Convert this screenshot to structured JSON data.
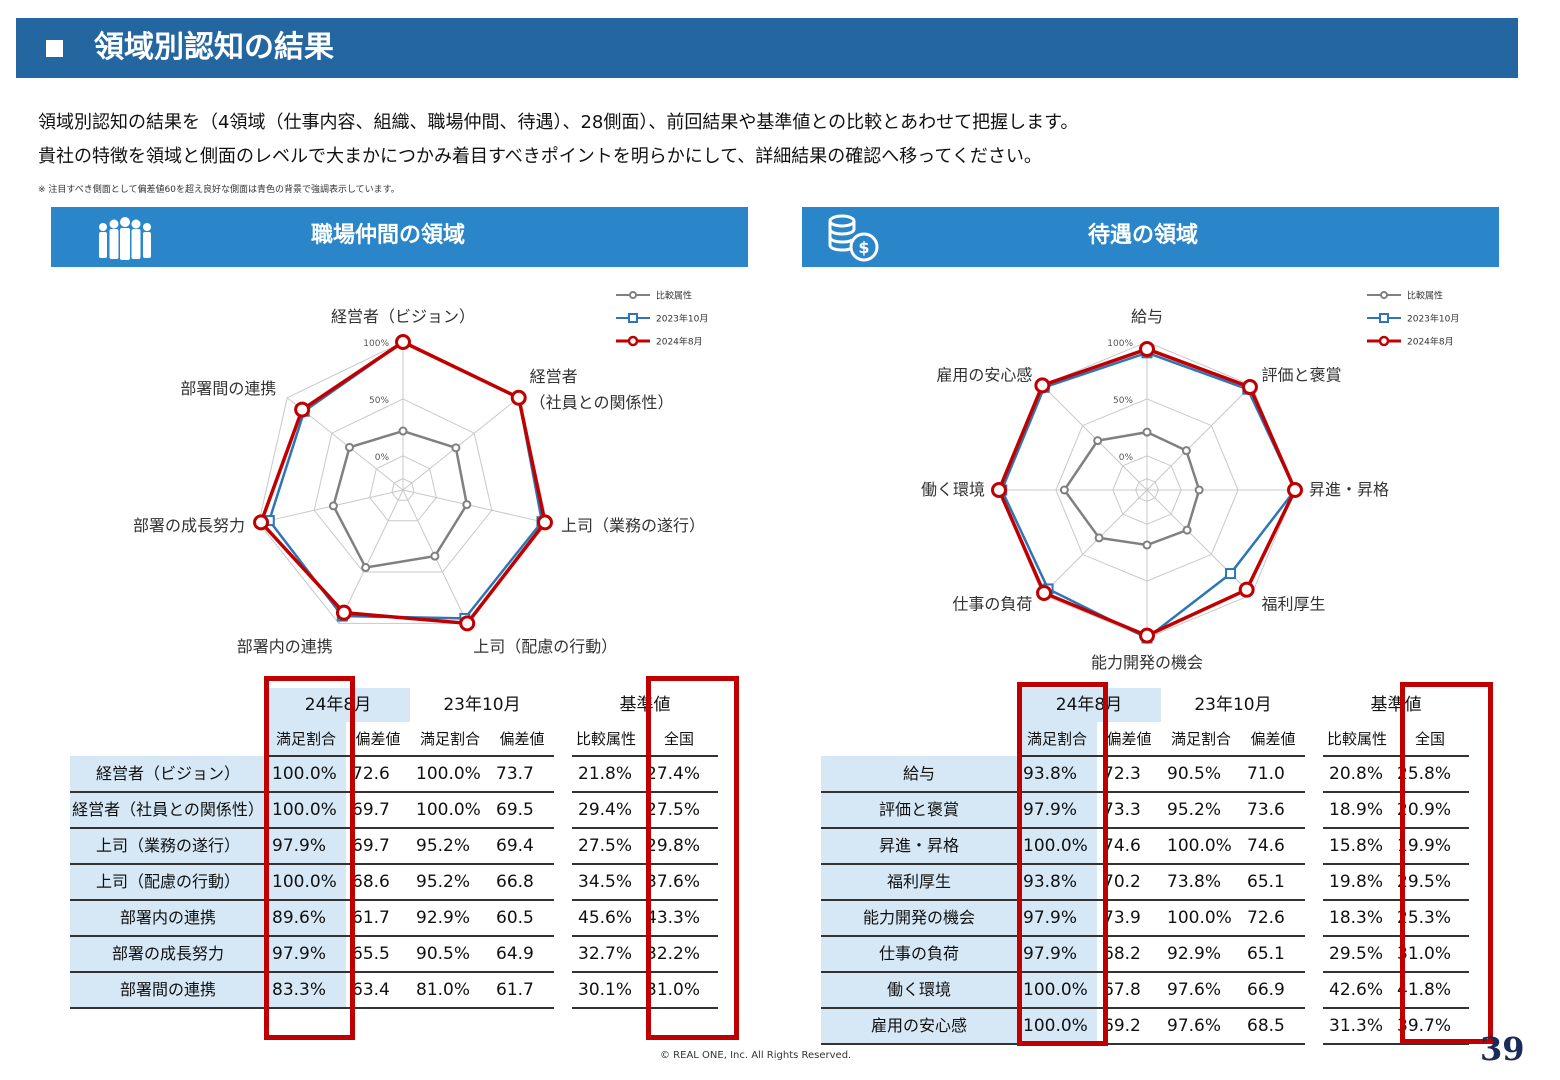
{
  "header": {
    "title": "領域別認知の結果"
  },
  "intro": {
    "line1": "領域別認知の結果を（4領域（仕事内容、組織、職場仲間、待遇）、28側面）、前回結果や基準値との比較とあわせて把握します。",
    "line2": "貴社の特徴を領域と側面のレベルで大まかにつかみ着目すべきポイントを明らかにして、詳細結果の確認へ移ってください。",
    "note": "※ 注目すべき側面として偏差値60を超え良好な側面は青色の背景で強調表示しています。"
  },
  "table_headers": {
    "g1": "24年8月",
    "g2": "23年10月",
    "g3": "基準値",
    "s_satisfaction": "満足割合",
    "s_deviation": "偏差値",
    "s_compare": "比較属性",
    "s_national": "全国"
  },
  "footer": {
    "copyright": "© REAL ONE, Inc. All Rights Reserved.",
    "page": "39"
  },
  "colors": {
    "header_bg": "#2466a0",
    "panel_bg": "#2a86c8",
    "series_compare": "#808080",
    "series_2023": "#2e75b6",
    "series_2024": "#c00000",
    "highlight_box": "#c00000",
    "cell_blue": "#d6e8f6"
  },
  "icons": {
    "left_panel": "people-group-icon",
    "right_panel": "coins-icon"
  },
  "chart_data": [
    {
      "type": "radar",
      "panel_title": "職場仲間の領域",
      "categories": [
        "経営者（ビジョン）",
        "経営者（社員との関係性）",
        "上司（業務の遂行）",
        "上司（配慮の行動）",
        "部署内の連携",
        "部署の成長努力",
        "部署間の連携"
      ],
      "axis_label_lines": [
        [
          "経営者（ビジョン）"
        ],
        [
          "経営者",
          "（社員との関係性）"
        ],
        [
          "上司（業務の遂行）"
        ],
        [
          "上司（配慮の行動）"
        ],
        [
          "部署内の連携"
        ],
        [
          "部署の成長努力"
        ],
        [
          "部署間の連携"
        ]
      ],
      "table_labels": [
        "経営者（ビジョン）",
        "経営者（社員との関係性）",
        "上司（業務の遂行）",
        "上司（配慮の行動）",
        "部署内の連携",
        "部署の成長努力",
        "部署間の連携"
      ],
      "ticks": [
        "100%",
        "50%",
        "0%"
      ],
      "range": [
        -30,
        100
      ],
      "legend": [
        "比較属性",
        "2023年10月",
        "2024年8月"
      ],
      "series": [
        {
          "name": "比較属性",
          "values": [
            21.8,
            29.4,
            27.5,
            34.5,
            45.6,
            32.7,
            30.1
          ]
        },
        {
          "name": "2023年10月",
          "values": [
            100.0,
            100.0,
            95.2,
            95.2,
            92.9,
            90.5,
            81.0
          ]
        },
        {
          "name": "2024年8月",
          "values": [
            100.0,
            100.0,
            97.9,
            100.0,
            89.6,
            97.9,
            83.3
          ]
        }
      ],
      "table": {
        "sat_2024": [
          "100.0%",
          "100.0%",
          "97.9%",
          "100.0%",
          "89.6%",
          "97.9%",
          "83.3%"
        ],
        "dev_2024": [
          "72.6",
          "69.7",
          "69.7",
          "68.6",
          "61.7",
          "65.5",
          "63.4"
        ],
        "sat_2023": [
          "100.0%",
          "100.0%",
          "95.2%",
          "95.2%",
          "92.9%",
          "90.5%",
          "81.0%"
        ],
        "dev_2023": [
          "73.7",
          "69.5",
          "69.4",
          "66.8",
          "60.5",
          "64.9",
          "61.7"
        ],
        "compare": [
          "21.8%",
          "29.4%",
          "27.5%",
          "34.5%",
          "45.6%",
          "32.7%",
          "30.1%"
        ],
        "national": [
          "27.4%",
          "27.5%",
          "29.8%",
          "37.6%",
          "43.3%",
          "32.2%",
          "31.0%"
        ]
      }
    },
    {
      "type": "radar",
      "panel_title": "待遇の領域",
      "categories": [
        "給与",
        "評価と褒賞",
        "昇進・昇格",
        "福利厚生",
        "能力開発の機会",
        "仕事の負荷",
        "働く環境",
        "雇用の安心感"
      ],
      "axis_label_lines": [
        [
          "給与"
        ],
        [
          "評価と褒賞"
        ],
        [
          "昇進・昇格"
        ],
        [
          "福利厚生"
        ],
        [
          "能力開発の機会"
        ],
        [
          "仕事の負荷"
        ],
        [
          "働く環境"
        ],
        [
          "雇用の安心感"
        ]
      ],
      "table_labels": [
        "給与",
        "評価と褒賞",
        "昇進・昇格",
        "福利厚生",
        "能力開発の機会",
        "仕事の負荷",
        "働く環境",
        "雇用の安心感"
      ],
      "ticks": [
        "100%",
        "50%",
        "0%"
      ],
      "range": [
        -30,
        100
      ],
      "legend": [
        "比較属性",
        "2023年10月",
        "2024年8月"
      ],
      "series": [
        {
          "name": "比較属性",
          "values": [
            20.8,
            18.9,
            15.8,
            19.8,
            18.3,
            29.5,
            42.6,
            31.3
          ]
        },
        {
          "name": "2023年10月",
          "values": [
            90.5,
            95.2,
            100.0,
            73.8,
            100.0,
            92.9,
            97.6,
            97.6
          ]
        },
        {
          "name": "2024年8月",
          "values": [
            93.8,
            97.9,
            100.0,
            93.8,
            97.9,
            97.9,
            100.0,
            100.0
          ]
        }
      ],
      "table": {
        "sat_2024": [
          "93.8%",
          "97.9%",
          "100.0%",
          "93.8%",
          "97.9%",
          "97.9%",
          "100.0%",
          "100.0%"
        ],
        "dev_2024": [
          "72.3",
          "73.3",
          "74.6",
          "70.2",
          "73.9",
          "68.2",
          "67.8",
          "69.2"
        ],
        "sat_2023": [
          "90.5%",
          "95.2%",
          "100.0%",
          "73.8%",
          "100.0%",
          "92.9%",
          "97.6%",
          "97.6%"
        ],
        "dev_2023": [
          "71.0",
          "73.6",
          "74.6",
          "65.1",
          "72.6",
          "65.1",
          "66.9",
          "68.5"
        ],
        "compare": [
          "20.8%",
          "18.9%",
          "15.8%",
          "19.8%",
          "18.3%",
          "29.5%",
          "42.6%",
          "31.3%"
        ],
        "national": [
          "25.8%",
          "20.9%",
          "19.9%",
          "29.5%",
          "25.3%",
          "31.0%",
          "41.8%",
          "39.7%"
        ]
      }
    }
  ]
}
